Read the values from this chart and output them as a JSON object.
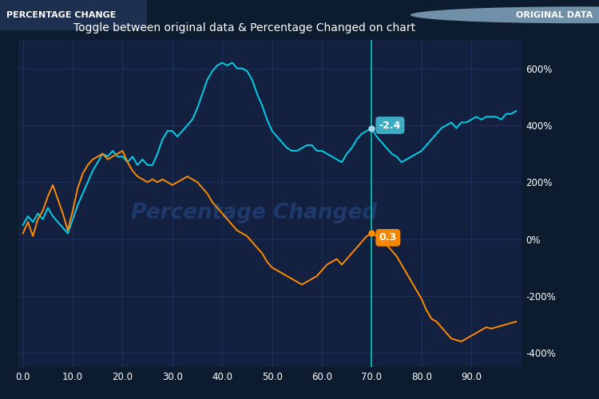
{
  "title": "Toggle between original data & Percentage Changed on chart",
  "header_left": "PERCENTAGE CHANGE",
  "header_right": "ORIGINAL DATA",
  "bg_color": "#0d1b2e",
  "plot_bg_color": "#132040",
  "header_bg_left": "#1a2d4a",
  "header_bg_right": "#0d1b2e",
  "grid_color": "#1e3560",
  "cyan_color": "#00d0e8",
  "orange_color": "#ff8c00",
  "vertical_line_x": 70,
  "vertical_line_color": "#00c8b4",
  "watermark_text": "Percentage Changed",
  "watermark_color": "#1e3a6a",
  "tooltip_cyan_label": "-2.4",
  "tooltip_orange_label": "0.3",
  "tooltip_cyan_bg": "#40b8d0",
  "tooltip_orange_bg": "#ff8c00",
  "ylim": [
    -450,
    700
  ],
  "xlim": [
    -1,
    100
  ],
  "yticks": [
    -400,
    -200,
    0,
    200,
    400,
    600
  ],
  "xticks": [
    0,
    10,
    20,
    30,
    40,
    50,
    60,
    70,
    80,
    90
  ],
  "cyan_dot_y": 390,
  "orange_dot_y": 20,
  "cyan_x": [
    0,
    1,
    2,
    3,
    4,
    5,
    6,
    7,
    8,
    9,
    10,
    11,
    12,
    13,
    14,
    15,
    16,
    17,
    18,
    19,
    20,
    21,
    22,
    23,
    24,
    25,
    26,
    27,
    28,
    29,
    30,
    31,
    32,
    33,
    34,
    35,
    36,
    37,
    38,
    39,
    40,
    41,
    42,
    43,
    44,
    45,
    46,
    47,
    48,
    49,
    50,
    51,
    52,
    53,
    54,
    55,
    56,
    57,
    58,
    59,
    60,
    61,
    62,
    63,
    64,
    65,
    66,
    67,
    68,
    69,
    70,
    71,
    72,
    73,
    74,
    75,
    76,
    77,
    78,
    79,
    80,
    81,
    82,
    83,
    84,
    85,
    86,
    87,
    88,
    89,
    90,
    91,
    92,
    93,
    94,
    95,
    96,
    97,
    98,
    99
  ],
  "cyan_y": [
    50,
    80,
    60,
    90,
    70,
    110,
    80,
    60,
    40,
    20,
    70,
    120,
    160,
    200,
    240,
    270,
    300,
    290,
    310,
    290,
    290,
    270,
    290,
    260,
    280,
    260,
    260,
    300,
    350,
    380,
    380,
    360,
    380,
    400,
    420,
    460,
    510,
    560,
    590,
    610,
    620,
    610,
    620,
    600,
    600,
    590,
    560,
    510,
    470,
    420,
    380,
    360,
    340,
    320,
    310,
    310,
    320,
    330,
    330,
    310,
    310,
    300,
    290,
    280,
    270,
    300,
    320,
    350,
    370,
    380,
    390,
    360,
    340,
    320,
    300,
    290,
    270,
    280,
    290,
    300,
    310,
    330,
    350,
    370,
    390,
    400,
    410,
    390,
    410,
    410,
    420,
    430,
    420,
    430,
    430,
    430,
    420,
    440,
    440,
    450
  ],
  "orange_x": [
    0,
    1,
    2,
    3,
    4,
    5,
    6,
    7,
    8,
    9,
    10,
    11,
    12,
    13,
    14,
    15,
    16,
    17,
    18,
    19,
    20,
    21,
    22,
    23,
    24,
    25,
    26,
    27,
    28,
    29,
    30,
    31,
    32,
    33,
    34,
    35,
    36,
    37,
    38,
    39,
    40,
    41,
    42,
    43,
    44,
    45,
    46,
    47,
    48,
    49,
    50,
    51,
    52,
    53,
    54,
    55,
    56,
    57,
    58,
    59,
    60,
    61,
    62,
    63,
    64,
    65,
    66,
    67,
    68,
    69,
    70,
    71,
    72,
    73,
    74,
    75,
    76,
    77,
    78,
    79,
    80,
    81,
    82,
    83,
    84,
    85,
    86,
    87,
    88,
    89,
    90,
    91,
    92,
    93,
    94,
    95,
    96,
    97,
    98,
    99
  ],
  "orange_y": [
    20,
    60,
    10,
    70,
    100,
    150,
    190,
    140,
    90,
    30,
    100,
    180,
    230,
    260,
    280,
    290,
    300,
    280,
    290,
    300,
    310,
    270,
    240,
    220,
    210,
    200,
    210,
    200,
    210,
    200,
    190,
    200,
    210,
    220,
    210,
    200,
    180,
    160,
    130,
    110,
    90,
    70,
    50,
    30,
    20,
    10,
    -10,
    -30,
    -50,
    -80,
    -100,
    -110,
    -120,
    -130,
    -140,
    -150,
    -160,
    -150,
    -140,
    -130,
    -110,
    -90,
    -80,
    -70,
    -90,
    -70,
    -50,
    -30,
    -10,
    10,
    20,
    10,
    -10,
    -20,
    -40,
    -60,
    -90,
    -120,
    -150,
    -180,
    -210,
    -250,
    -280,
    -290,
    -310,
    -330,
    -350,
    -355,
    -360,
    -350,
    -340,
    -330,
    -320,
    -310,
    -315,
    -310,
    -305,
    -300,
    -295,
    -290
  ]
}
